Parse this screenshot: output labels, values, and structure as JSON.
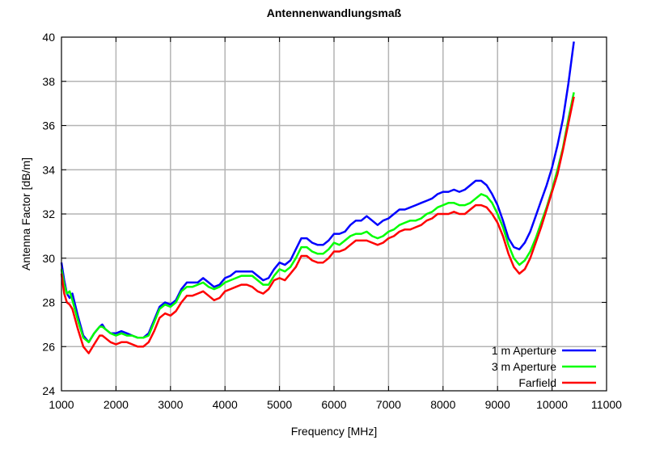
{
  "chart_data": {
    "type": "line",
    "title": "Antennenwandlungsmaß",
    "xlabel": "Frequency [MHz]",
    "ylabel": "Antenna Factor [dB/m]",
    "xlim": [
      1000,
      11000
    ],
    "ylim": [
      24,
      40
    ],
    "xticks": [
      1000,
      2000,
      3000,
      4000,
      5000,
      6000,
      7000,
      8000,
      9000,
      10000,
      11000
    ],
    "yticks": [
      24,
      26,
      28,
      30,
      32,
      34,
      36,
      38,
      40
    ],
    "grid": true,
    "legend_position": "bottom-right",
    "series": [
      {
        "name": "1 m Aperture",
        "color": "#0000ff",
        "x": [
          1000,
          1050,
          1100,
          1150,
          1200,
          1300,
          1400,
          1500,
          1600,
          1700,
          1750,
          1800,
          1900,
          2000,
          2100,
          2200,
          2300,
          2400,
          2500,
          2600,
          2700,
          2800,
          2900,
          3000,
          3100,
          3200,
          3300,
          3400,
          3500,
          3600,
          3700,
          3800,
          3900,
          4000,
          4100,
          4200,
          4300,
          4400,
          4500,
          4600,
          4700,
          4800,
          4900,
          5000,
          5100,
          5200,
          5300,
          5400,
          5500,
          5600,
          5700,
          5800,
          5900,
          6000,
          6100,
          6200,
          6300,
          6400,
          6500,
          6600,
          6700,
          6800,
          6900,
          7000,
          7100,
          7200,
          7300,
          7400,
          7500,
          7600,
          7700,
          7800,
          7900,
          8000,
          8100,
          8200,
          8300,
          8400,
          8500,
          8600,
          8700,
          8800,
          8900,
          9000,
          9100,
          9200,
          9300,
          9400,
          9500,
          9600,
          9700,
          9800,
          9900,
          10000,
          10100,
          10200,
          10300,
          10400
        ],
        "values": [
          29.8,
          29.0,
          28.4,
          28.2,
          28.4,
          27.4,
          26.5,
          26.2,
          26.6,
          26.9,
          27.0,
          26.8,
          26.6,
          26.6,
          26.7,
          26.6,
          26.5,
          26.4,
          26.4,
          26.6,
          27.2,
          27.8,
          28.0,
          27.9,
          28.1,
          28.6,
          28.9,
          28.9,
          28.9,
          29.1,
          28.9,
          28.7,
          28.8,
          29.1,
          29.2,
          29.4,
          29.4,
          29.4,
          29.4,
          29.2,
          29.0,
          29.1,
          29.5,
          29.8,
          29.7,
          29.9,
          30.4,
          30.9,
          30.9,
          30.7,
          30.6,
          30.6,
          30.8,
          31.1,
          31.1,
          31.2,
          31.5,
          31.7,
          31.7,
          31.9,
          31.7,
          31.5,
          31.7,
          31.8,
          32.0,
          32.2,
          32.2,
          32.3,
          32.4,
          32.5,
          32.6,
          32.7,
          32.9,
          33.0,
          33.0,
          33.1,
          33.0,
          33.1,
          33.3,
          33.5,
          33.5,
          33.3,
          32.9,
          32.4,
          31.7,
          30.9,
          30.5,
          30.4,
          30.7,
          31.2,
          31.9,
          32.6,
          33.3,
          34.1,
          35.1,
          36.3,
          37.9,
          39.8
        ]
      },
      {
        "name": "3 m Aperture",
        "color": "#00ff00",
        "x": [
          1000,
          1050,
          1100,
          1150,
          1200,
          1300,
          1400,
          1500,
          1600,
          1700,
          1750,
          1800,
          1900,
          2000,
          2100,
          2200,
          2300,
          2400,
          2500,
          2600,
          2700,
          2800,
          2900,
          3000,
          3100,
          3200,
          3300,
          3400,
          3500,
          3600,
          3700,
          3800,
          3900,
          4000,
          4100,
          4200,
          4300,
          4400,
          4500,
          4600,
          4700,
          4800,
          4900,
          5000,
          5100,
          5200,
          5300,
          5400,
          5500,
          5600,
          5700,
          5800,
          5900,
          6000,
          6100,
          6200,
          6300,
          6400,
          6500,
          6600,
          6700,
          6800,
          6900,
          7000,
          7100,
          7200,
          7300,
          7400,
          7500,
          7600,
          7700,
          7800,
          7900,
          8000,
          8100,
          8200,
          8300,
          8400,
          8500,
          8600,
          8700,
          8800,
          8900,
          9000,
          9100,
          9200,
          9300,
          9400,
          9500,
          9600,
          9700,
          9800,
          9900,
          10000,
          10100,
          10200,
          10300,
          10400
        ],
        "values": [
          29.5,
          28.8,
          28.4,
          28.5,
          28.1,
          27.2,
          26.4,
          26.2,
          26.6,
          26.9,
          26.9,
          26.8,
          26.6,
          26.5,
          26.6,
          26.5,
          26.5,
          26.4,
          26.4,
          26.5,
          27.1,
          27.7,
          27.9,
          27.8,
          28.0,
          28.5,
          28.7,
          28.7,
          28.8,
          28.9,
          28.7,
          28.6,
          28.7,
          28.9,
          29.0,
          29.1,
          29.2,
          29.2,
          29.2,
          29.0,
          28.8,
          28.8,
          29.2,
          29.5,
          29.4,
          29.6,
          30.0,
          30.5,
          30.5,
          30.3,
          30.2,
          30.2,
          30.4,
          30.7,
          30.6,
          30.8,
          31.0,
          31.1,
          31.1,
          31.2,
          31.0,
          30.9,
          31.0,
          31.2,
          31.3,
          31.5,
          31.6,
          31.7,
          31.7,
          31.8,
          32.0,
          32.1,
          32.3,
          32.4,
          32.5,
          32.5,
          32.4,
          32.4,
          32.5,
          32.7,
          32.9,
          32.8,
          32.5,
          32.0,
          31.4,
          30.6,
          30.0,
          29.7,
          29.9,
          30.3,
          30.9,
          31.6,
          32.3,
          33.1,
          34.0,
          35.0,
          36.3,
          37.5
        ]
      },
      {
        "name": "Farfield",
        "color": "#ff0000",
        "x": [
          1000,
          1050,
          1100,
          1150,
          1200,
          1300,
          1400,
          1500,
          1600,
          1700,
          1750,
          1800,
          1900,
          2000,
          2100,
          2200,
          2300,
          2400,
          2500,
          2600,
          2700,
          2800,
          2900,
          3000,
          3100,
          3200,
          3300,
          3400,
          3500,
          3600,
          3700,
          3800,
          3900,
          4000,
          4100,
          4200,
          4300,
          4400,
          4500,
          4600,
          4700,
          4800,
          4900,
          5000,
          5100,
          5200,
          5300,
          5400,
          5500,
          5600,
          5700,
          5800,
          5900,
          6000,
          6100,
          6200,
          6300,
          6400,
          6500,
          6600,
          6700,
          6800,
          6900,
          7000,
          7100,
          7200,
          7300,
          7400,
          7500,
          7600,
          7700,
          7800,
          7900,
          8000,
          8100,
          8200,
          8300,
          8400,
          8500,
          8600,
          8700,
          8800,
          8900,
          9000,
          9100,
          9200,
          9300,
          9400,
          9500,
          9600,
          9700,
          9800,
          9900,
          10000,
          10100,
          10200,
          10300,
          10400
        ],
        "values": [
          29.3,
          28.4,
          28.0,
          27.9,
          27.7,
          26.8,
          26.0,
          25.7,
          26.1,
          26.5,
          26.5,
          26.4,
          26.2,
          26.1,
          26.2,
          26.2,
          26.1,
          26.0,
          26.0,
          26.2,
          26.7,
          27.3,
          27.5,
          27.4,
          27.6,
          28.0,
          28.3,
          28.3,
          28.4,
          28.5,
          28.3,
          28.1,
          28.2,
          28.5,
          28.6,
          28.7,
          28.8,
          28.8,
          28.7,
          28.5,
          28.4,
          28.6,
          29.0,
          29.1,
          29.0,
          29.3,
          29.6,
          30.1,
          30.1,
          29.9,
          29.8,
          29.8,
          30.0,
          30.3,
          30.3,
          30.4,
          30.6,
          30.8,
          30.8,
          30.8,
          30.7,
          30.6,
          30.7,
          30.9,
          31.0,
          31.2,
          31.3,
          31.3,
          31.4,
          31.5,
          31.7,
          31.8,
          32.0,
          32.0,
          32.0,
          32.1,
          32.0,
          32.0,
          32.2,
          32.4,
          32.4,
          32.3,
          32.0,
          31.6,
          31.0,
          30.2,
          29.6,
          29.3,
          29.5,
          30.0,
          30.7,
          31.4,
          32.2,
          33.0,
          33.8,
          34.9,
          36.1,
          37.3
        ]
      }
    ]
  }
}
